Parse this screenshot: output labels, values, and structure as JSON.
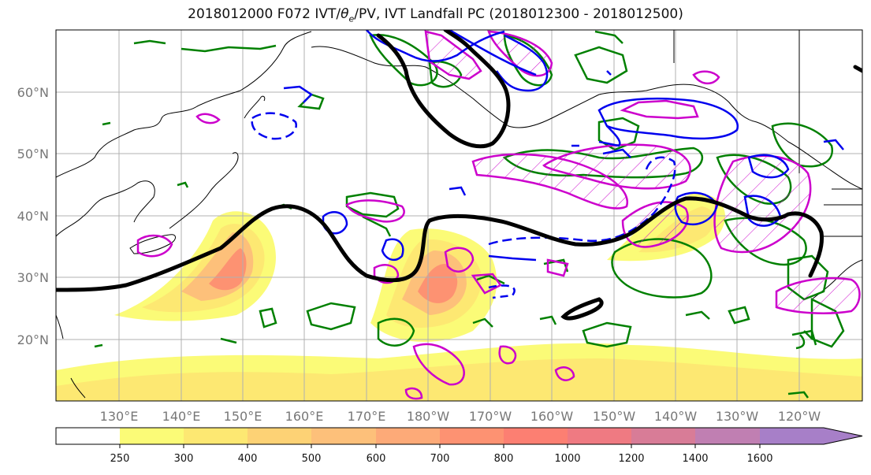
{
  "title": {
    "prefix": "2018012000 F072 IVT/",
    "theta": "θ",
    "theta_sub": "e",
    "suffix": "/PV, IVT Landfall PC (2018012300 - 2018012500)"
  },
  "lat_labels": [
    "60°N",
    "50°N",
    "40°N",
    "30°N",
    "20°N"
  ],
  "lon_labels": [
    "130°E",
    "140°E",
    "150°E",
    "160°E",
    "170°E",
    "180°W",
    "170°W",
    "160°W",
    "150°W",
    "140°W",
    "130°W",
    "120°W"
  ],
  "colorbar": {
    "ticks": [
      "250",
      "300",
      "400",
      "500",
      "600",
      "700",
      "800",
      "1000",
      "1200",
      "1400",
      "1600"
    ],
    "colors": [
      "#ffffff",
      "#fbfb77",
      "#fde872",
      "#fdd275",
      "#fdc07a",
      "#fdaa78",
      "#fd9272",
      "#fc7f72",
      "#ef7a82",
      "#d87c97",
      "#c07fb2",
      "#a77fc8"
    ]
  },
  "contour_colors": {
    "pv_anomaly": "#008000",
    "theta_e_positive": "#cc00cc",
    "theta_e_negative": "#0000ee",
    "pc_contour": "#000000"
  }
}
